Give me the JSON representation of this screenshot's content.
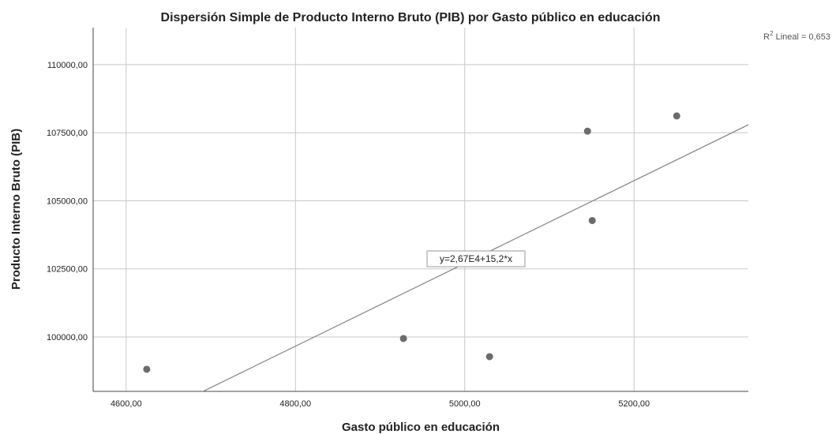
{
  "chart_data": {
    "type": "scatter",
    "title": "Dispersión Simple de Producto Interno Bruto (PIB) por Gasto público en educación",
    "x_label": "Gasto público en educación",
    "y_label": "Producto Interno Bruto (PIB)",
    "x": [
      4624.3,
      4927.6,
      5029.3,
      5145,
      5150.6,
      5250.4
    ],
    "series": [
      {
        "name": "PIB",
        "color": "#6b6b6b",
        "values": [
          98812,
          99942,
          99275,
          107558,
          104275,
          108116
        ]
      }
    ],
    "xlim": [
      4561,
      5335
    ],
    "ylim": [
      98000,
      111360
    ],
    "xticks": [
      {
        "value": 4600,
        "label": "4600,00"
      },
      {
        "value": 4800,
        "label": "4800,00"
      },
      {
        "value": 5000,
        "label": "5000,00"
      },
      {
        "value": 5200,
        "label": "5200,00"
      }
    ],
    "yticks": [
      {
        "value": 100000,
        "label": "100000,00"
      },
      {
        "value": 102500,
        "label": "102500,00"
      },
      {
        "value": 105000,
        "label": "105000,00"
      },
      {
        "value": 107500,
        "label": "107500,00"
      },
      {
        "value": 110000,
        "label": "110000,00"
      }
    ],
    "grid": true,
    "fit": {
      "label": "y=2,67E4+15,2*x",
      "intercept": 26700,
      "slope": 15.2,
      "color": "#8a8a8a"
    },
    "r2_label": {
      "base": "R",
      "sup": "2",
      "rest": " Lineal = 0,653"
    }
  }
}
